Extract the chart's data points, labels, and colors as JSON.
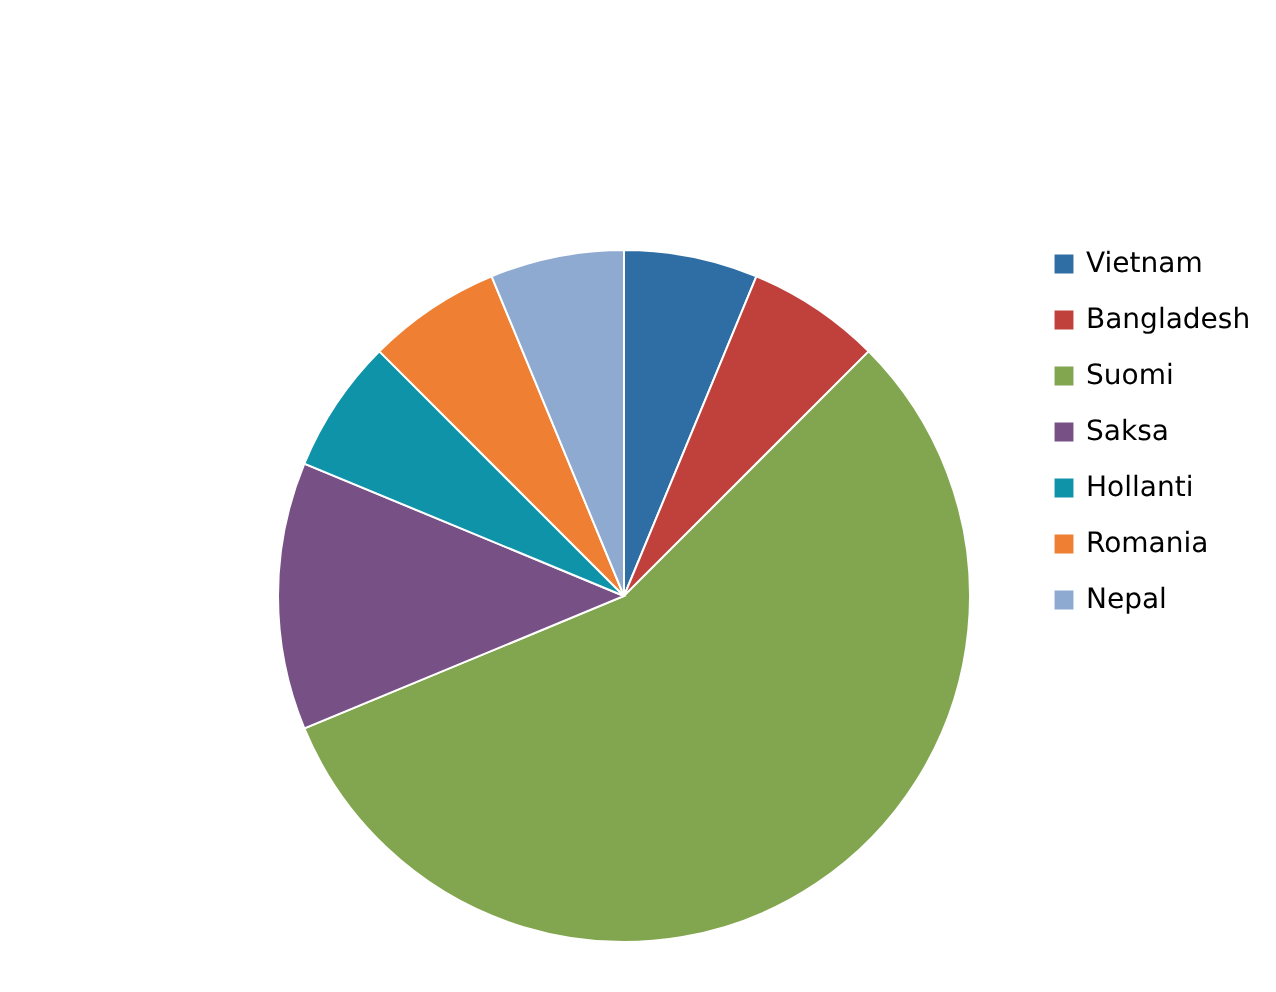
{
  "chart_data": {
    "type": "pie",
    "categories": [
      "Vietnam",
      "Bangladesh",
      "Suomi",
      "Saksa",
      "Hollanti",
      "Romania",
      "Nepal"
    ],
    "values": [
      6.25,
      6.25,
      56.25,
      12.5,
      6.25,
      6.25,
      6.25
    ],
    "colors": [
      "#2f6ea5",
      "#c0413c",
      "#82a64f",
      "#775186",
      "#0f93a8",
      "#ef7f33",
      "#8faad0"
    ],
    "legend": "right"
  }
}
